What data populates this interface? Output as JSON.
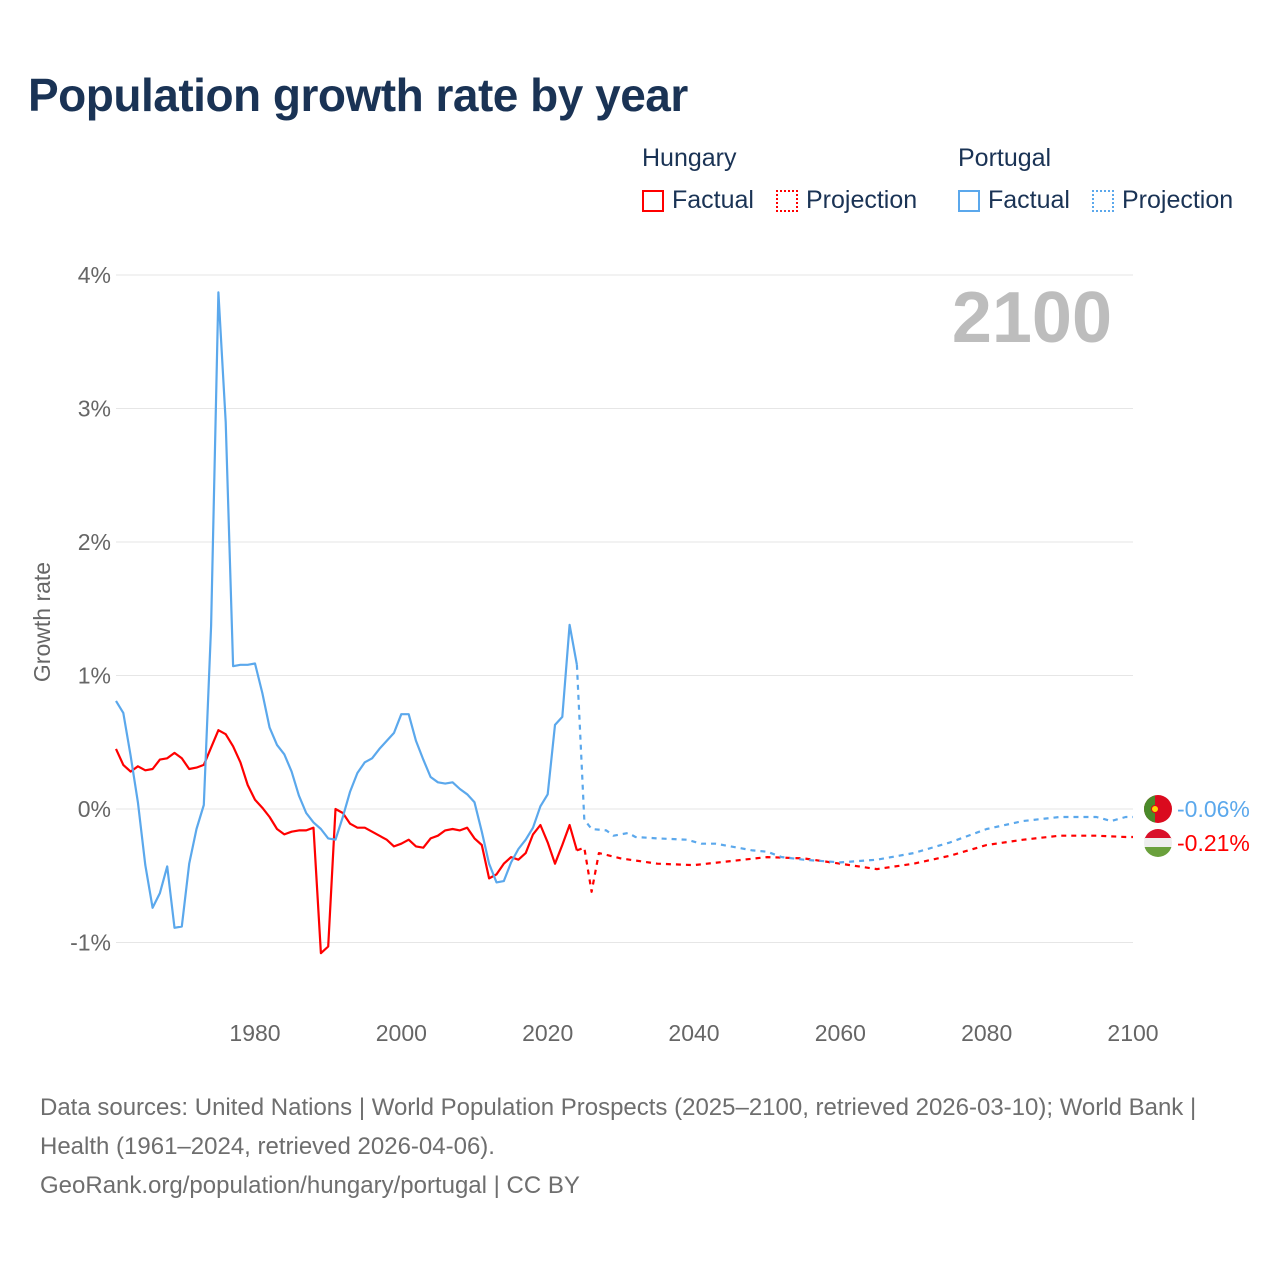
{
  "title": "Population growth rate by year",
  "legend": {
    "groups": [
      {
        "name": "Hungary",
        "factual": "Factual",
        "projection": "Projection",
        "color": "#ff0000"
      },
      {
        "name": "Portugal",
        "factual": "Factual",
        "projection": "Projection",
        "color": "#5ba8ec"
      }
    ]
  },
  "year_label": "2100",
  "end_labels": {
    "portugal": "-0.06%",
    "hungary": "-0.21%"
  },
  "footer": {
    "line1": "Data sources: United Nations | World Population Prospects (2025–2100, retrieved 2026-03-10); World Bank | Health (1961–2024, retrieved 2026-04-06).",
    "line2": "GeoRank.org/population/hungary/portugal | CC BY"
  },
  "chart_data": {
    "type": "line",
    "title": "Population growth rate by year",
    "xlabel": "",
    "ylabel": "Growth rate",
    "xlim": [
      1961,
      2100
    ],
    "ylim": [
      -1.5,
      4.2
    ],
    "yticks": [
      {
        "v": 4,
        "label": "4%"
      },
      {
        "v": 3,
        "label": "3%"
      },
      {
        "v": 2,
        "label": "2%"
      },
      {
        "v": 1,
        "label": "1%"
      },
      {
        "v": 0,
        "label": "0%"
      },
      {
        "v": -1,
        "label": "-1%"
      }
    ],
    "xticks": [
      {
        "v": 1980,
        "label": "1980"
      },
      {
        "v": 2000,
        "label": "2000"
      },
      {
        "v": 2020,
        "label": "2020"
      },
      {
        "v": 2040,
        "label": "2040"
      },
      {
        "v": 2060,
        "label": "2060"
      },
      {
        "v": 2080,
        "label": "2080"
      },
      {
        "v": 2100,
        "label": "2100"
      }
    ],
    "series": [
      {
        "name": "Hungary Factual",
        "color": "#ff0000",
        "dashed": false,
        "x_start": 1961,
        "values": [
          0.45,
          0.33,
          0.28,
          0.32,
          0.29,
          0.3,
          0.37,
          0.38,
          0.42,
          0.38,
          0.3,
          0.31,
          0.33,
          0.46,
          0.59,
          0.56,
          0.47,
          0.35,
          0.18,
          0.07,
          0.01,
          -0.06,
          -0.15,
          -0.19,
          -0.17,
          -0.16,
          -0.16,
          -0.14,
          -1.08,
          -1.03,
          0.0,
          -0.03,
          -0.11,
          -0.14,
          -0.14,
          -0.17,
          -0.2,
          -0.23,
          -0.28,
          -0.26,
          -0.23,
          -0.28,
          -0.29,
          -0.22,
          -0.2,
          -0.16,
          -0.15,
          -0.16,
          -0.14,
          -0.22,
          -0.27,
          -0.52,
          -0.49,
          -0.41,
          -0.36,
          -0.38,
          -0.33,
          -0.19,
          -0.12,
          -0.25,
          -0.41,
          -0.27,
          -0.12,
          -0.31
        ]
      },
      {
        "name": "Hungary Projection",
        "color": "#ff0000",
        "dashed": true,
        "points": [
          [
            2024,
            -0.31
          ],
          [
            2025,
            -0.29
          ],
          [
            2026,
            -0.62
          ],
          [
            2027,
            -0.33
          ],
          [
            2030,
            -0.37
          ],
          [
            2035,
            -0.41
          ],
          [
            2040,
            -0.42
          ],
          [
            2045,
            -0.39
          ],
          [
            2050,
            -0.36
          ],
          [
            2055,
            -0.37
          ],
          [
            2060,
            -0.41
          ],
          [
            2065,
            -0.45
          ],
          [
            2070,
            -0.41
          ],
          [
            2075,
            -0.35
          ],
          [
            2080,
            -0.27
          ],
          [
            2085,
            -0.23
          ],
          [
            2090,
            -0.2
          ],
          [
            2095,
            -0.2
          ],
          [
            2099,
            -0.21
          ],
          [
            2100,
            -0.21
          ]
        ]
      },
      {
        "name": "Portugal Factual",
        "color": "#5ba8ec",
        "dashed": false,
        "x_start": 1961,
        "values": [
          0.81,
          0.72,
          0.4,
          0.05,
          -0.42,
          -0.74,
          -0.63,
          -0.43,
          -0.89,
          -0.88,
          -0.41,
          -0.15,
          0.03,
          1.37,
          3.87,
          2.9,
          1.07,
          1.08,
          1.08,
          1.09,
          0.87,
          0.61,
          0.48,
          0.41,
          0.28,
          0.1,
          -0.03,
          -0.1,
          -0.15,
          -0.22,
          -0.23,
          -0.06,
          0.13,
          0.27,
          0.35,
          0.38,
          0.45,
          0.51,
          0.57,
          0.71,
          0.71,
          0.51,
          0.37,
          0.24,
          0.2,
          0.19,
          0.2,
          0.15,
          0.11,
          0.05,
          -0.17,
          -0.41,
          -0.55,
          -0.54,
          -0.4,
          -0.3,
          -0.23,
          -0.14,
          0.02,
          0.11,
          0.63,
          0.69,
          1.38,
          1.08
        ]
      },
      {
        "name": "Portugal Projection",
        "color": "#5ba8ec",
        "dashed": true,
        "points": [
          [
            2024,
            1.08
          ],
          [
            2025,
            -0.08
          ],
          [
            2026,
            -0.15
          ],
          [
            2028,
            -0.16
          ],
          [
            2029,
            -0.2
          ],
          [
            2031,
            -0.18
          ],
          [
            2032,
            -0.21
          ],
          [
            2035,
            -0.22
          ],
          [
            2039,
            -0.23
          ],
          [
            2041,
            -0.26
          ],
          [
            2043,
            -0.26
          ],
          [
            2045,
            -0.28
          ],
          [
            2048,
            -0.31
          ],
          [
            2050,
            -0.32
          ],
          [
            2052,
            -0.36
          ],
          [
            2055,
            -0.38
          ],
          [
            2060,
            -0.4
          ],
          [
            2065,
            -0.38
          ],
          [
            2070,
            -0.33
          ],
          [
            2075,
            -0.25
          ],
          [
            2080,
            -0.15
          ],
          [
            2085,
            -0.09
          ],
          [
            2090,
            -0.06
          ],
          [
            2095,
            -0.06
          ],
          [
            2097,
            -0.09
          ],
          [
            2099,
            -0.06
          ],
          [
            2100,
            -0.06
          ]
        ]
      }
    ]
  }
}
